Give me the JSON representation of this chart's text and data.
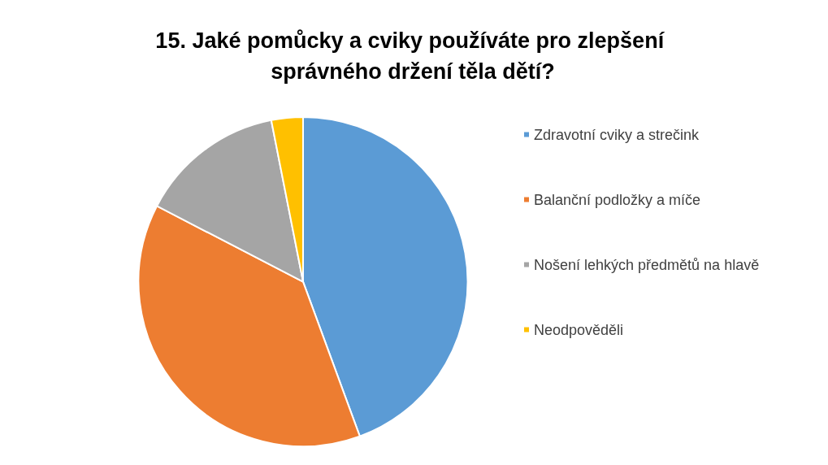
{
  "chart_data": {
    "type": "pie",
    "title": "15. Jaké pomůcky a cviky používáte pro zlepšení správného držení těla dětí?",
    "categories": [
      "Zdravotní cviky a strečink",
      "Balanční podložky a míče",
      "Nošení lehkých předmětů na hlavě",
      "Neodpověděli"
    ],
    "values": [
      44.4,
      38.2,
      14.3,
      3.1
    ],
    "colors": [
      "#5b9bd5",
      "#ed7d31",
      "#a5a5a5",
      "#ffc000"
    ],
    "legend": "right"
  }
}
